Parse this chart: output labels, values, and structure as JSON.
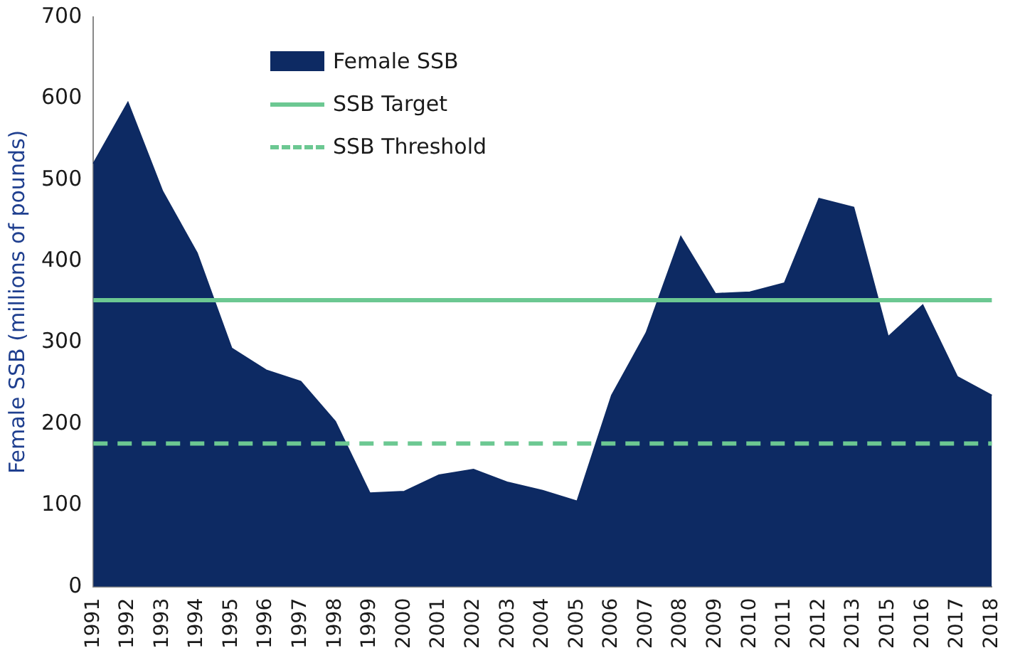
{
  "chart_data": {
    "type": "area",
    "ylabel": "Female SSB (millions of pounds)",
    "categories": [
      "1991",
      "1992",
      "1993",
      "1994",
      "1995",
      "1996",
      "1997",
      "1998",
      "1999",
      "2000",
      "2001",
      "2002",
      "2003",
      "2004",
      "2005",
      "2006",
      "2007",
      "2008",
      "2009",
      "2010",
      "2011",
      "2012",
      "2013",
      "2015",
      "2016",
      "2017",
      "2018"
    ],
    "series": [
      {
        "name": "Female SSB",
        "color": "#0d2a63",
        "values": [
          520,
          595,
          486,
          410,
          293,
          266,
          252,
          203,
          115,
          117,
          137,
          144,
          128,
          118,
          105,
          235,
          312,
          430,
          360,
          362,
          373,
          477,
          466,
          307,
          346,
          258,
          235
        ]
      }
    ],
    "ref_lines": [
      {
        "axis": "y",
        "value": 352,
        "label": "SSB Target",
        "color": "#6cc892",
        "line_style": "solid"
      },
      {
        "axis": "y",
        "value": 176,
        "label": "SSB Threshold",
        "color": "#6cc892",
        "line_style": "dashed"
      }
    ],
    "ylim": [
      0,
      700
    ],
    "yticks": [
      0,
      100,
      200,
      300,
      400,
      500,
      600,
      700
    ],
    "grid": false,
    "legend": "top left"
  }
}
